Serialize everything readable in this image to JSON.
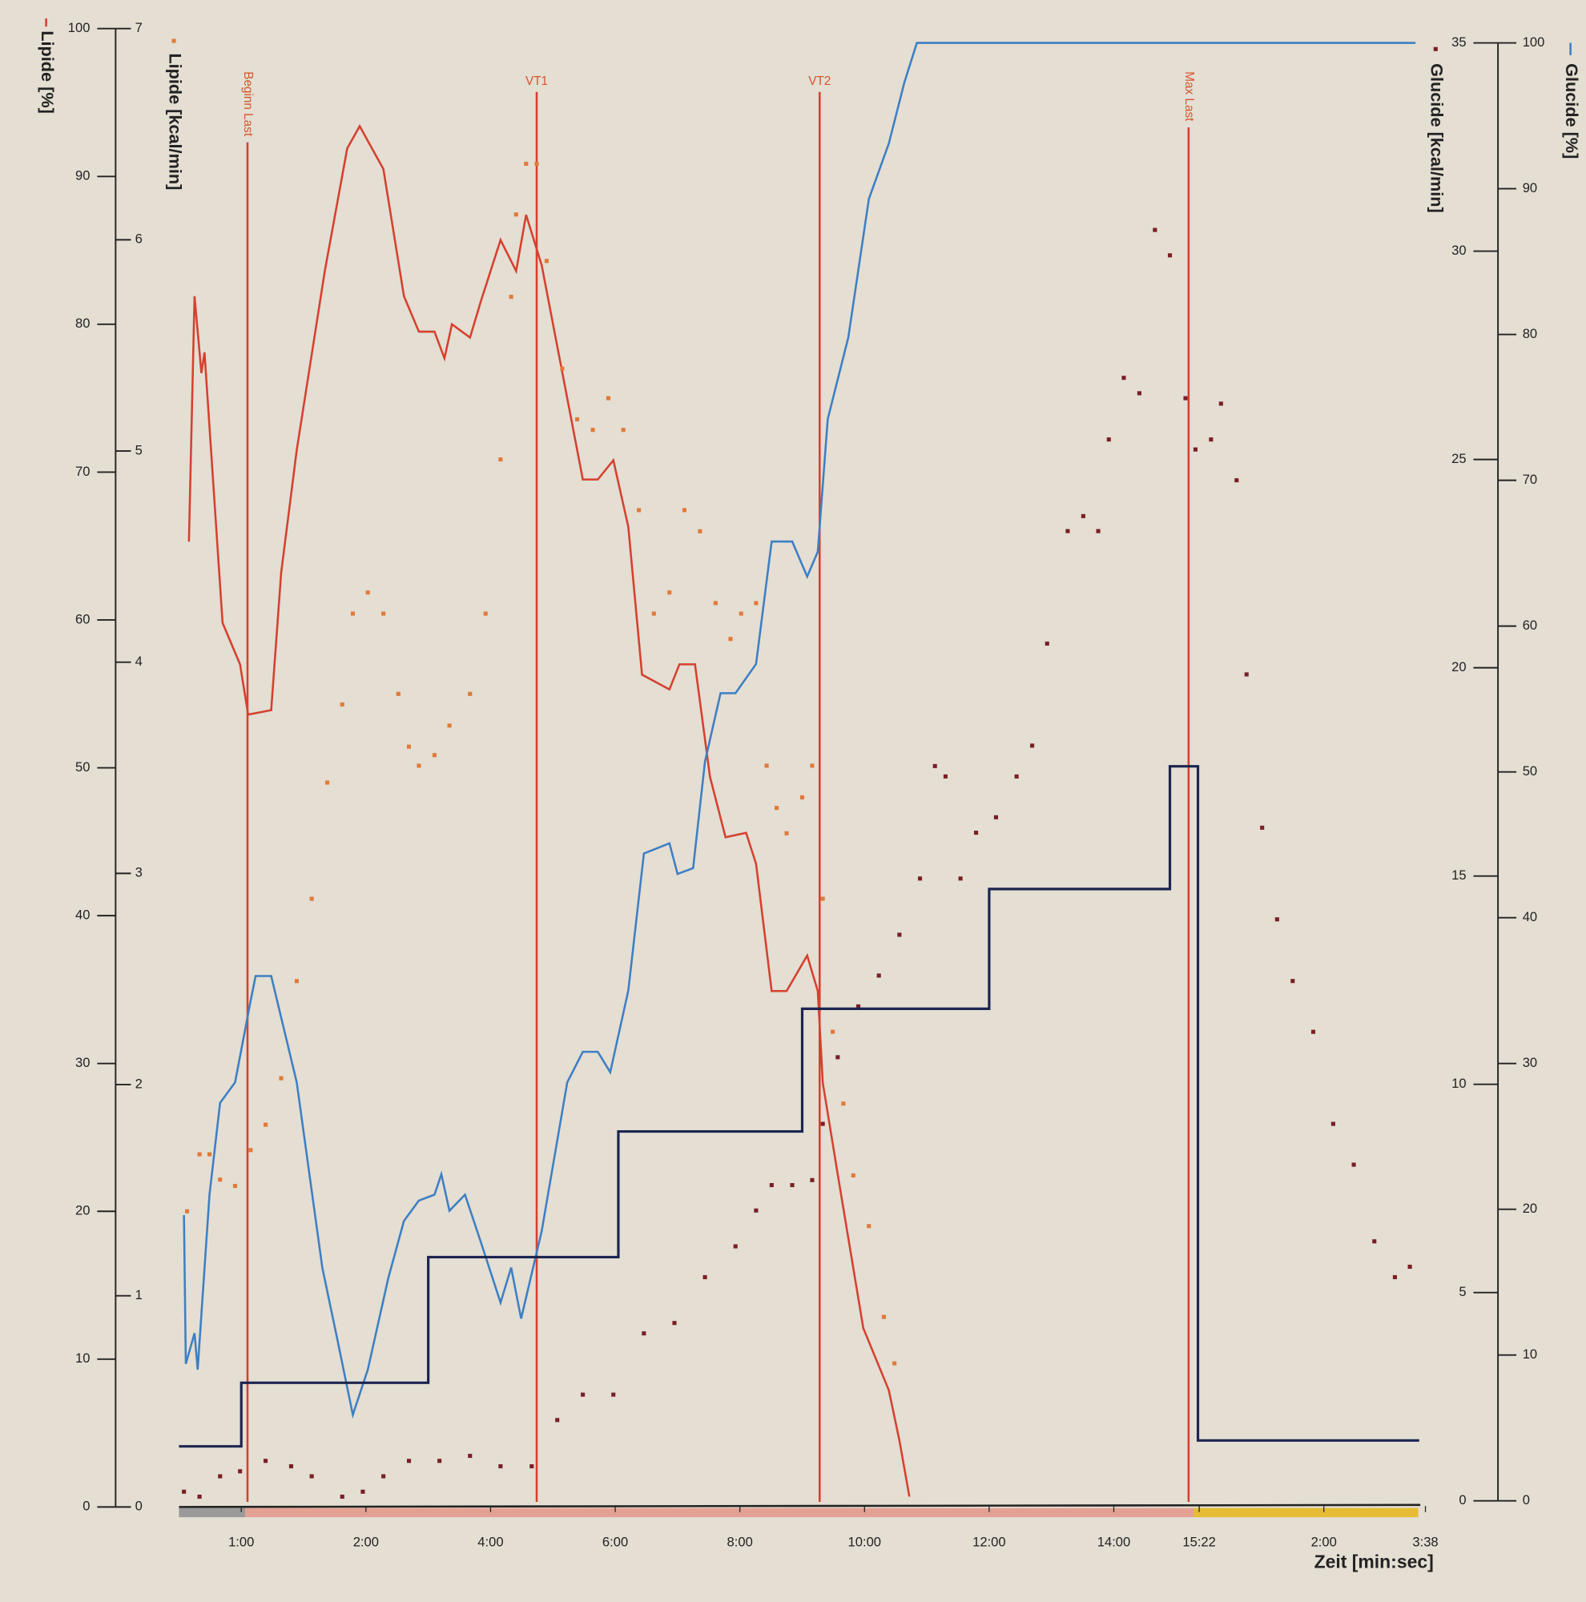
{
  "chart_data": {
    "type": "line",
    "x_label": "Zeit [min:sec]",
    "xlim": [
      -1,
      19
    ],
    "xticks": [
      {
        "value": 0,
        "label": "1:00"
      },
      {
        "value": 2,
        "label": "2:00"
      },
      {
        "value": 4,
        "label": "4:00"
      },
      {
        "value": 6,
        "label": "6:00"
      },
      {
        "value": 8,
        "label": "8:00"
      },
      {
        "value": 10,
        "label": "10:00"
      },
      {
        "value": 12,
        "label": "12:00"
      },
      {
        "value": 14,
        "label": "14:00"
      },
      {
        "value": 15.37,
        "label": "15:22"
      },
      {
        "value": 17.37,
        "label": "2:00"
      },
      {
        "value": 19,
        "label": "3:38"
      }
    ],
    "y_label": "Lipide [%]",
    "ylim": [
      0,
      100
    ],
    "yticks": [
      0,
      10,
      20,
      30,
      40,
      50,
      60,
      70,
      80,
      90,
      100
    ],
    "y2_label": "Lipide [kcal/min]",
    "y2lim": [
      0,
      7
    ],
    "y2ticks": [
      0,
      1,
      2,
      3,
      4,
      5,
      6,
      7
    ],
    "y3_label": "Glucide [kcal/min]",
    "y3lim": [
      0,
      35
    ],
    "y3ticks": [
      0,
      5,
      10,
      15,
      20,
      25,
      30,
      35
    ],
    "y4_label": "Glucide [%]",
    "y4lim": [
      0,
      100
    ],
    "y4ticks": [
      0,
      10,
      20,
      30,
      40,
      50,
      60,
      70,
      80,
      90,
      100
    ],
    "annotations": [
      {
        "x": 0.1,
        "label": "Beginn Last",
        "orientation": "vertical"
      },
      {
        "x": 4.74,
        "label": "VT1",
        "orientation": "horizontal"
      },
      {
        "x": 9.28,
        "label": "VT2",
        "orientation": "horizontal"
      },
      {
        "x": 15.2,
        "label": "Max Last",
        "orientation": "vertical"
      }
    ],
    "series": [
      {
        "axis": "y",
        "style": "line",
        "color": "#d6402e",
        "x": [
          -0.84,
          -0.75,
          -0.64,
          -0.59,
          -0.3,
          -0.02,
          0.11,
          0.48,
          0.64,
          0.89,
          1.34,
          1.7,
          1.9,
          2.28,
          2.61,
          2.85,
          3.1,
          3.26,
          3.38,
          3.67,
          3.84,
          4.16,
          4.41,
          4.57,
          4.82,
          5.23,
          5.48,
          5.72,
          5.97,
          6.21,
          6.43,
          6.87,
          7.03,
          7.28,
          7.52,
          7.77,
          8.1,
          8.26,
          8.51,
          8.75,
          9.08,
          9.25,
          9.33,
          9.57,
          9.98,
          10.39,
          10.56,
          10.72
        ],
        "values": [
          65.3,
          81.9,
          76.7,
          78.1,
          59.8,
          57,
          53.6,
          53.9,
          63.2,
          71.5,
          83.6,
          91.9,
          93.4,
          90.5,
          81.9,
          79.5,
          79.5,
          77.7,
          80,
          79.1,
          81.5,
          85.7,
          83.6,
          87.4,
          84,
          75,
          69.5,
          69.5,
          70.8,
          66.3,
          56.3,
          55.3,
          57,
          57,
          49.4,
          45.3,
          45.6,
          43.5,
          34.9,
          34.9,
          37.3,
          34.9,
          28.7,
          22.5,
          12.1,
          7.9,
          4.5,
          0.7
        ]
      },
      {
        "axis": "y2",
        "style": "dots",
        "color": "#e07a3a",
        "x": [
          -0.87,
          -0.67,
          -0.51,
          -0.34,
          -0.1,
          0.15,
          0.39,
          0.64,
          0.89,
          1.13,
          1.38,
          1.62,
          1.79,
          2.03,
          2.28,
          2.52,
          2.69,
          2.85,
          3.1,
          3.34,
          3.67,
          3.92,
          4.16,
          4.33,
          4.41,
          4.57,
          4.74,
          4.9,
          5.15,
          5.39,
          5.64,
          5.89,
          6.13,
          6.38,
          6.62,
          6.87,
          7.11,
          7.36,
          7.61,
          7.85,
          8.02,
          8.26,
          8.43,
          8.59,
          8.75,
          9.0,
          9.16,
          9.33,
          9.49,
          9.66,
          9.82,
          10.07,
          10.31,
          10.48
        ],
        "values": [
          1.4,
          1.67,
          1.67,
          1.55,
          1.52,
          1.69,
          1.81,
          2.03,
          2.49,
          2.88,
          3.43,
          3.8,
          4.23,
          4.33,
          4.23,
          3.85,
          3.6,
          3.51,
          3.56,
          3.7,
          3.85,
          4.23,
          4.96,
          5.73,
          6.12,
          6.36,
          6.36,
          5.9,
          5.39,
          5.15,
          5.1,
          5.25,
          5.1,
          4.72,
          4.23,
          4.33,
          4.72,
          4.62,
          4.28,
          4.11,
          4.23,
          4.28,
          3.51,
          3.31,
          3.19,
          3.36,
          3.51,
          2.88,
          2.25,
          1.91,
          1.57,
          1.33,
          0.9,
          0.68
        ]
      },
      {
        "axis": "y4",
        "style": "line",
        "color": "#3d7fc4",
        "x": [
          -0.92,
          -0.89,
          -0.75,
          -0.7,
          -0.51,
          -0.34,
          -0.1,
          0.15,
          0.23,
          0.48,
          0.89,
          1.3,
          1.54,
          1.79,
          2.03,
          2.36,
          2.61,
          2.85,
          3.1,
          3.21,
          3.34,
          3.59,
          3.84,
          4.16,
          4.33,
          4.49,
          4.82,
          5.23,
          5.48,
          5.72,
          5.92,
          6.21,
          6.46,
          6.87,
          7,
          7.25,
          7.44,
          7.69,
          7.93,
          8.26,
          8.51,
          8.84,
          9.08,
          9.25,
          9.41,
          9.74,
          10.07,
          10.39,
          10.64,
          10.84,
          18.84
        ],
        "values": [
          19.6,
          9.4,
          11.5,
          9,
          21,
          27.3,
          28.7,
          34.3,
          36,
          36,
          28.7,
          16,
          11.1,
          5.9,
          9,
          15.3,
          19.2,
          20.6,
          21,
          22.4,
          19.9,
          21,
          17.8,
          13.6,
          16,
          12.5,
          18.5,
          28.7,
          30.8,
          30.8,
          29.4,
          35,
          44.4,
          45.1,
          43,
          43.4,
          50.7,
          55.4,
          55.4,
          57.4,
          65.8,
          65.8,
          63.4,
          65.1,
          74.2,
          79.8,
          89.3,
          93.1,
          97.3,
          100,
          100
        ]
      },
      {
        "axis": "y3",
        "style": "dots",
        "color": "#7a1f24",
        "x": [
          -0.92,
          -0.67,
          -0.34,
          -0.02,
          0.39,
          0.8,
          1.13,
          1.62,
          1.95,
          2.28,
          2.69,
          3.18,
          3.67,
          4.16,
          4.66,
          5.07,
          5.48,
          5.97,
          6.46,
          6.95,
          7.44,
          7.93,
          8.26,
          8.51,
          8.84,
          9.16,
          9.33,
          9.57,
          9.9,
          10.23,
          10.56,
          10.89,
          11.13,
          11.3,
          11.54,
          11.79,
          12.11,
          12.44,
          12.69,
          12.93,
          13.26,
          13.51,
          13.75,
          13.92,
          14.16,
          14.41,
          14.66,
          14.9,
          15.15,
          15.31,
          15.56,
          15.72,
          15.97,
          16.13,
          16.38,
          16.62,
          16.87,
          17.2,
          17.52,
          17.85,
          18.18,
          18.51,
          18.75
        ],
        "values": [
          0.22,
          0.1,
          0.59,
          0.71,
          0.96,
          0.83,
          0.59,
          0.1,
          0.22,
          0.59,
          0.96,
          0.96,
          1.08,
          0.83,
          0.83,
          1.94,
          2.55,
          2.55,
          4.02,
          4.27,
          5.37,
          6.11,
          6.97,
          7.58,
          7.58,
          7.7,
          9.05,
          10.65,
          11.87,
          12.61,
          13.59,
          14.94,
          17.64,
          17.39,
          14.94,
          16.04,
          16.41,
          17.39,
          18.13,
          20.58,
          23.28,
          23.64,
          23.28,
          25.48,
          26.96,
          26.59,
          30.51,
          29.9,
          26.47,
          25.24,
          25.48,
          26.34,
          24.5,
          19.84,
          16.16,
          13.96,
          12.48,
          11.26,
          9.05,
          8.07,
          6.23,
          5.37,
          5.62
        ]
      },
      {
        "axis": "y",
        "style": "step",
        "color": "#1c2550",
        "x": [
          -1,
          0,
          3,
          6.05,
          9,
          12,
          14.9,
          15.35,
          18.9
        ],
        "values": [
          4.1,
          8.4,
          16.9,
          25.4,
          33.7,
          41.8,
          50.1,
          4.5,
          4.5
        ]
      }
    ]
  }
}
